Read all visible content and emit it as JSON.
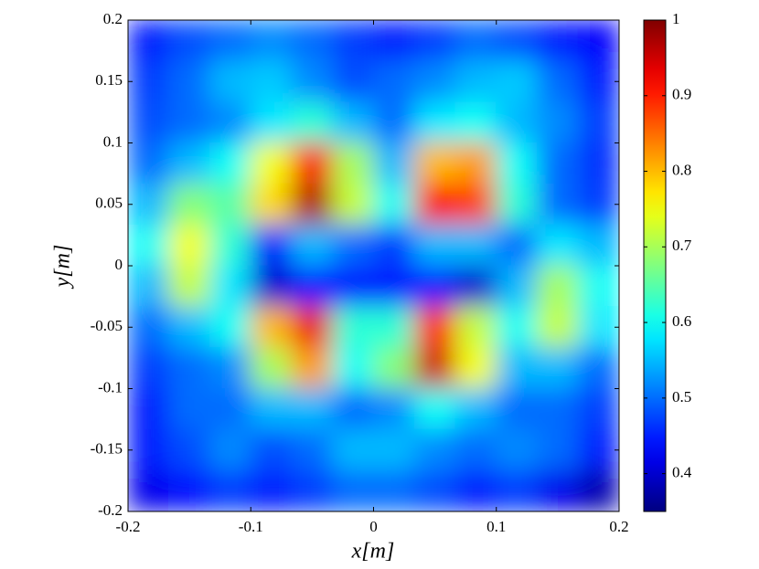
{
  "chart_data": {
    "type": "heatmap",
    "xlabel": "x[m]",
    "ylabel": "y[m]",
    "xlim": [
      -0.2,
      0.2
    ],
    "ylim": [
      -0.2,
      0.2
    ],
    "xticks": [
      -0.2,
      -0.1,
      0,
      0.1,
      0.2
    ],
    "yticks": [
      -0.2,
      -0.15,
      -0.1,
      -0.05,
      0,
      0.05,
      0.1,
      0.15,
      0.2
    ],
    "colormap": "jet",
    "clim": [
      0.35,
      1
    ],
    "cticks": [
      0.4,
      0.5,
      0.6,
      0.7,
      0.8,
      0.9,
      1
    ],
    "z": [
      [
        0.45,
        0.48,
        0.5,
        0.52,
        0.5,
        0.47,
        0.45,
        0.47,
        0.5,
        0.48,
        0.45,
        0.43
      ],
      [
        0.47,
        0.5,
        0.55,
        0.56,
        0.52,
        0.48,
        0.5,
        0.52,
        0.55,
        0.56,
        0.5,
        0.45
      ],
      [
        0.48,
        0.5,
        0.52,
        0.58,
        0.62,
        0.55,
        0.5,
        0.58,
        0.6,
        0.55,
        0.52,
        0.47
      ],
      [
        0.5,
        0.55,
        0.6,
        0.75,
        0.92,
        0.7,
        0.55,
        0.8,
        0.82,
        0.6,
        0.5,
        0.46
      ],
      [
        0.55,
        0.68,
        0.65,
        0.78,
        0.97,
        0.72,
        0.6,
        0.92,
        0.88,
        0.62,
        0.5,
        0.47
      ],
      [
        0.6,
        0.75,
        0.62,
        0.45,
        0.55,
        0.5,
        0.47,
        0.55,
        0.55,
        0.5,
        0.58,
        0.55
      ],
      [
        0.55,
        0.72,
        0.58,
        0.4,
        0.45,
        0.45,
        0.45,
        0.45,
        0.4,
        0.55,
        0.7,
        0.6
      ],
      [
        0.5,
        0.55,
        0.6,
        0.8,
        0.93,
        0.62,
        0.62,
        0.9,
        0.72,
        0.6,
        0.72,
        0.58
      ],
      [
        0.47,
        0.5,
        0.52,
        0.7,
        0.82,
        0.6,
        0.68,
        0.95,
        0.75,
        0.55,
        0.55,
        0.5
      ],
      [
        0.45,
        0.5,
        0.5,
        0.55,
        0.55,
        0.5,
        0.52,
        0.6,
        0.55,
        0.5,
        0.5,
        0.47
      ],
      [
        0.45,
        0.48,
        0.52,
        0.48,
        0.5,
        0.55,
        0.55,
        0.52,
        0.5,
        0.52,
        0.5,
        0.45
      ],
      [
        0.42,
        0.44,
        0.47,
        0.45,
        0.47,
        0.5,
        0.5,
        0.48,
        0.45,
        0.47,
        0.42,
        0.38
      ]
    ]
  }
}
